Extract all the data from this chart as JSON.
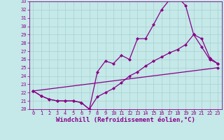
{
  "xlabel": "Windchill (Refroidissement éolien,°C)",
  "xlim": [
    -0.5,
    23.5
  ],
  "ylim": [
    20,
    33
  ],
  "xticks": [
    0,
    1,
    2,
    3,
    4,
    5,
    6,
    7,
    8,
    9,
    10,
    11,
    12,
    13,
    14,
    15,
    16,
    17,
    18,
    19,
    20,
    21,
    22,
    23
  ],
  "yticks": [
    20,
    21,
    22,
    23,
    24,
    25,
    26,
    27,
    28,
    29,
    30,
    31,
    32,
    33
  ],
  "bg_color": "#c5e8e8",
  "grid_color": "#a8d0d0",
  "line_color": "#880088",
  "line1_x": [
    0,
    1,
    2,
    3,
    4,
    5,
    6,
    7,
    8,
    9,
    10,
    11,
    12,
    13,
    14,
    15,
    16,
    17,
    18,
    19,
    20,
    21,
    22,
    23
  ],
  "line1_y": [
    22.2,
    21.6,
    21.2,
    21.0,
    21.0,
    21.0,
    20.8,
    20.0,
    24.5,
    25.8,
    25.5,
    26.5,
    26.0,
    28.5,
    28.5,
    30.2,
    32.0,
    33.2,
    33.5,
    32.5,
    29.0,
    27.5,
    26.0,
    25.5
  ],
  "line2_x": [
    0,
    1,
    2,
    3,
    4,
    5,
    6,
    7,
    8,
    9,
    10,
    11,
    12,
    13,
    14,
    15,
    16,
    17,
    18,
    19,
    20,
    21,
    22,
    23
  ],
  "line2_y": [
    22.2,
    21.6,
    21.2,
    21.0,
    21.0,
    21.0,
    20.8,
    20.0,
    21.5,
    22.0,
    22.5,
    23.2,
    24.0,
    24.5,
    25.2,
    25.8,
    26.3,
    26.8,
    27.2,
    27.8,
    29.0,
    28.5,
    26.2,
    25.5
  ],
  "line3_x": [
    0,
    23
  ],
  "line3_y": [
    22.2,
    25.0
  ],
  "marker": "D",
  "markersize": 2.5,
  "linewidth": 0.9,
  "tick_fontsize": 5.0,
  "xlabel_fontsize": 6.5,
  "font_family": "monospace"
}
